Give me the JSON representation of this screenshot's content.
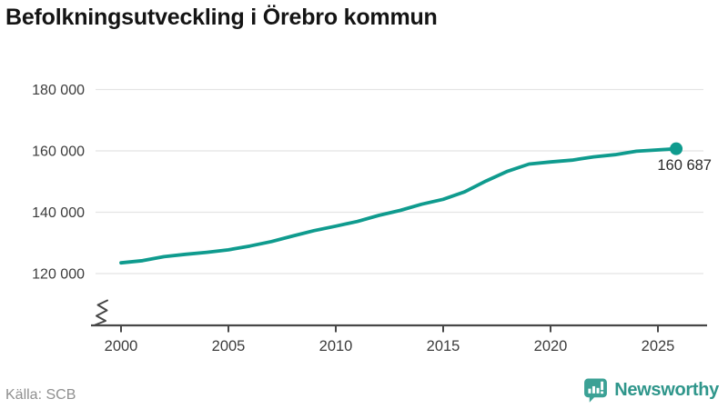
{
  "title": "Befolkningsutveckling i Örebro kommun",
  "source": "Källa: SCB",
  "branding": {
    "name": "Newsworthy",
    "wordmark_color": "#2f968b",
    "icon_color": "#3ba195"
  },
  "chart_data": {
    "type": "line",
    "title": "Befolkningsutveckling i Örebro kommun",
    "xlabel": "",
    "ylabel": "",
    "x": [
      2000,
      2001,
      2002,
      2003,
      2004,
      2005,
      2006,
      2007,
      2008,
      2009,
      2010,
      2011,
      2012,
      2013,
      2014,
      2015,
      2016,
      2017,
      2018,
      2019,
      2020,
      2021,
      2022,
      2023,
      2024,
      2025.85
    ],
    "values": [
      123503,
      124207,
      125520,
      126288,
      126940,
      127733,
      128977,
      130429,
      132277,
      134006,
      135460,
      136963,
      138952,
      140599,
      142618,
      144200,
      146631,
      150192,
      153367,
      155696,
      156381,
      156987,
      158057,
      158764,
      159875,
      160687
    ],
    "end_point": {
      "x": 2025.85,
      "value": 160687,
      "label": "160 687"
    },
    "x_ticks": {
      "values": [
        2000,
        2005,
        2010,
        2015,
        2020,
        2025
      ],
      "labels": [
        "2000",
        "2005",
        "2010",
        "2015",
        "2020",
        "2025"
      ]
    },
    "y_ticks": {
      "values": [
        120000,
        140000,
        160000,
        180000
      ],
      "labels": [
        "120 000",
        "140 000",
        "160 000",
        "180 000"
      ]
    },
    "ylim": [
      120000,
      180000
    ],
    "axis_break_bottom_left": true,
    "grid": "horizontal-only",
    "legend": "none",
    "line_color": "#0f9b8e",
    "grid_color": "#e4e4e4",
    "axis_color": "#474747",
    "tick_label_color": "#3c3c3c",
    "annotation_color": "#2b2b2b"
  }
}
